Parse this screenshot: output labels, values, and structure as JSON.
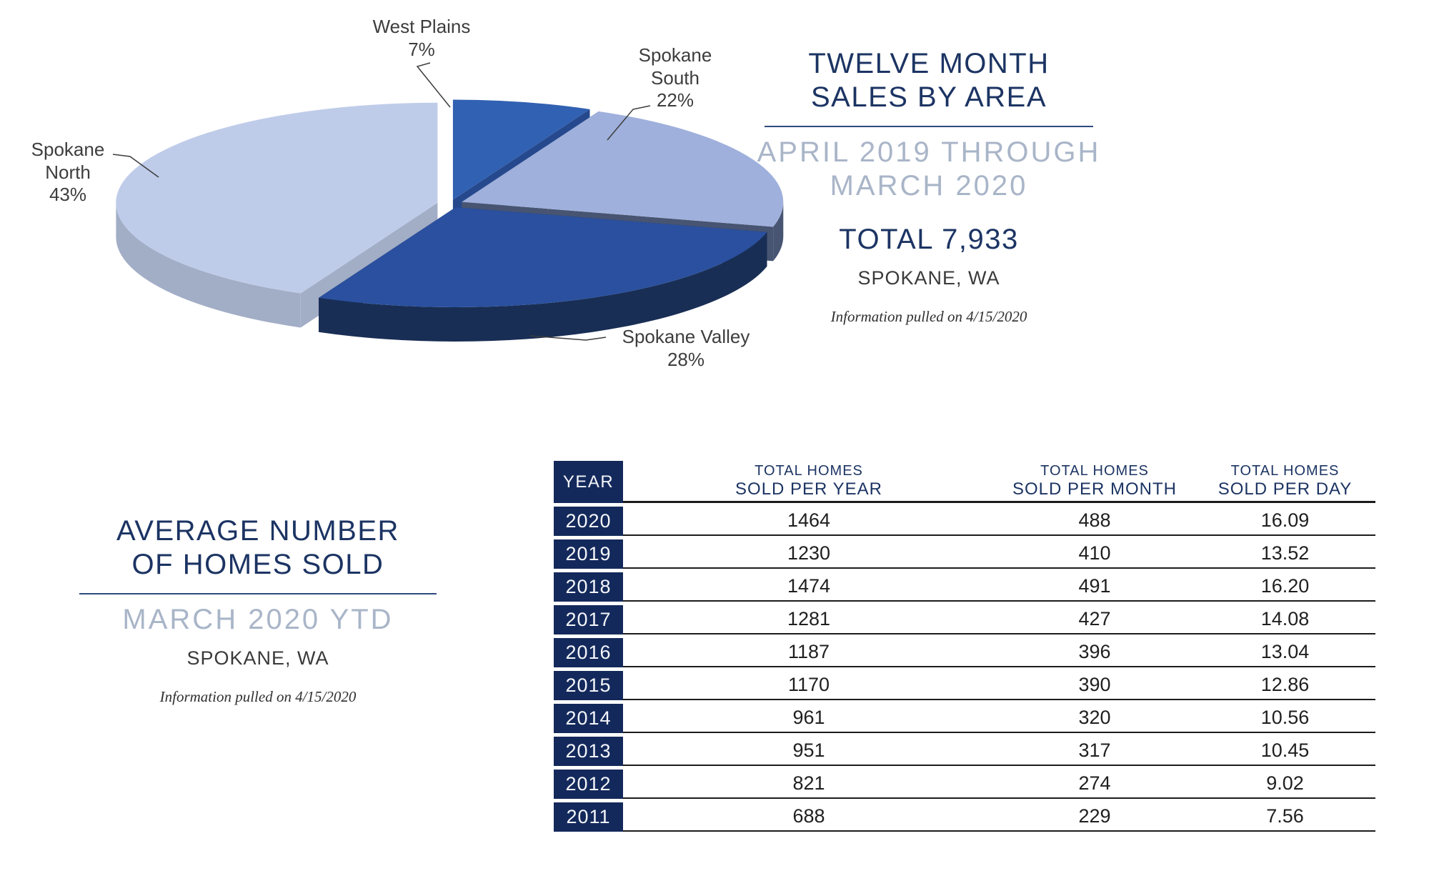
{
  "pie_section": {
    "title_line1": "TWELVE MONTH",
    "title_line2": "SALES BY AREA",
    "subtitle_line1": "APRIL 2019 THROUGH",
    "subtitle_line2": "MARCH 2020",
    "total": "TOTAL 7,933",
    "location": "SPOKANE, WA",
    "note": "Information pulled on 4/15/2020"
  },
  "avg_section": {
    "title_line1": "AVERAGE NUMBER",
    "title_line2": "OF HOMES SOLD",
    "subtitle": "MARCH 2020 YTD",
    "location": "SPOKANE, WA",
    "note": "Information pulled on 4/15/2020"
  },
  "chart_data": [
    {
      "type": "pie",
      "title": "Twelve Month Sales by Area",
      "unit": "percent",
      "start_angle_deg": 0,
      "direction": "clockwise",
      "style": "3d-exploded",
      "total_sales": 7933,
      "slices": [
        {
          "name": "West Plains",
          "value": 7,
          "label": "West Plains\n7%",
          "color_top": "#3161b2",
          "color_side": "#26498e"
        },
        {
          "name": "Spokane South",
          "value": 22,
          "label": "Spokane\nSouth\n22%",
          "color_top": "#9fb0dc",
          "color_side": "#475472"
        },
        {
          "name": "Spokane Valley",
          "value": 28,
          "label": "Spokane Valley\n28%",
          "color_top": "#2a509f",
          "color_side": "#192e55"
        },
        {
          "name": "Spokane North",
          "value": 43,
          "label": "Spokane\nNorth\n43%",
          "color_top": "#bfcce9",
          "color_side": "#a2adc6"
        }
      ]
    },
    {
      "type": "table",
      "year_header": "YEAR",
      "col_headers": [
        {
          "line1": "TOTAL HOMES",
          "line2": "SOLD PER YEAR"
        },
        {
          "line1": "TOTAL HOMES",
          "line2": "SOLD PER MONTH"
        },
        {
          "line1": "TOTAL HOMES",
          "line2": "SOLD PER DAY"
        }
      ],
      "rows": [
        {
          "year": "2020",
          "per_year": "1464",
          "per_month": "488",
          "per_day": "16.09"
        },
        {
          "year": "2019",
          "per_year": "1230",
          "per_month": "410",
          "per_day": "13.52"
        },
        {
          "year": "2018",
          "per_year": "1474",
          "per_month": "491",
          "per_day": "16.20"
        },
        {
          "year": "2017",
          "per_year": "1281",
          "per_month": "427",
          "per_day": "14.08"
        },
        {
          "year": "2016",
          "per_year": "1187",
          "per_month": "396",
          "per_day": "13.04"
        },
        {
          "year": "2015",
          "per_year": "1170",
          "per_month": "390",
          "per_day": "12.86"
        },
        {
          "year": "2014",
          "per_year": "961",
          "per_month": "320",
          "per_day": "10.56"
        },
        {
          "year": "2013",
          "per_year": "951",
          "per_month": "317",
          "per_day": "10.45"
        },
        {
          "year": "2012",
          "per_year": "821",
          "per_month": "274",
          "per_day": "9.02"
        },
        {
          "year": "2011",
          "per_year": "688",
          "per_month": "229",
          "per_day": "7.56"
        }
      ]
    }
  ],
  "colors": {
    "navy_text": "#1c3463",
    "table_cell_navy": "#14295b",
    "light_subtitle": "#a9b5c8",
    "divider": "#2d4a7d",
    "pie_label_text": "#3d3d3d"
  }
}
